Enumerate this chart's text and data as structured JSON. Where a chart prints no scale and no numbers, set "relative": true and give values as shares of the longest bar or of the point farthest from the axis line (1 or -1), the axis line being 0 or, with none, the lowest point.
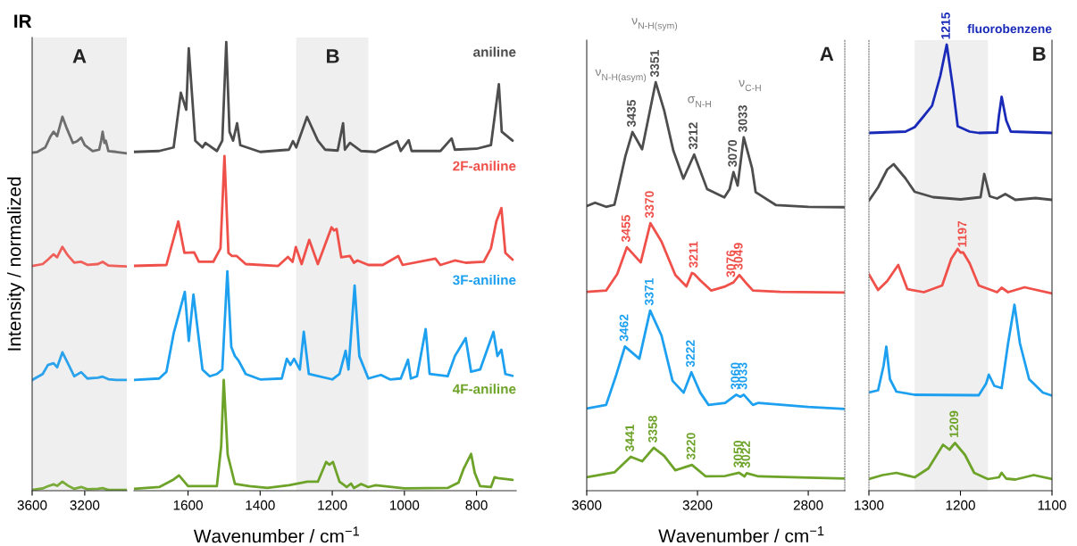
{
  "chart_data": [
    {
      "type": "line",
      "title": "IR",
      "ylabel": "Intensity / normalized",
      "relative": true,
      "xlim": [
        3600,
        2880
      ],
      "xticks": [
        3600,
        3200
      ],
      "tick_labels": "x",
      "bands": [
        {
          "axis": "x",
          "from": 3600,
          "to": 2880,
          "color": "#efefef"
        }
      ],
      "annotations": [
        "A"
      ],
      "series": [
        {
          "color": "#6e6e6e",
          "x": [
            3600,
            3560,
            3500,
            3460,
            3437,
            3410,
            3370,
            3340,
            3290,
            3260,
            3227,
            3200,
            3140,
            3090,
            3075,
            3064,
            3050,
            3040,
            3020,
            2960,
            2880
          ],
          "values": [
            0.904,
            0.906,
            0.918,
            0.948,
            0.96,
            0.948,
            1.0,
            0.972,
            0.93,
            0.934,
            0.944,
            0.924,
            0.908,
            0.912,
            0.936,
            0.96,
            0.93,
            0.936,
            0.908,
            0.906,
            0.902
          ]
        },
        {
          "color": "#f0605a",
          "x": [
            3600,
            3520,
            3480,
            3437,
            3410,
            3370,
            3330,
            3280,
            3227,
            3180,
            3100,
            3064,
            3020,
            2960,
            2880
          ],
          "values": [
            0.601,
            0.606,
            0.618,
            0.632,
            0.624,
            0.652,
            0.63,
            0.61,
            0.612,
            0.604,
            0.606,
            0.612,
            0.602,
            0.601,
            0.6
          ]
        },
        {
          "color": "#2ba2ec",
          "x": [
            3600,
            3520,
            3480,
            3437,
            3410,
            3370,
            3330,
            3280,
            3227,
            3180,
            3100,
            3064,
            3020,
            2960,
            2880
          ],
          "values": [
            0.296,
            0.312,
            0.336,
            0.341,
            0.33,
            0.37,
            0.342,
            0.306,
            0.317,
            0.3,
            0.302,
            0.305,
            0.298,
            0.296,
            0.296
          ]
        },
        {
          "color": "#78ab38",
          "x": [
            3600,
            3520,
            3480,
            3437,
            3410,
            3370,
            3330,
            3280,
            3227,
            3180,
            3100,
            3064,
            3020,
            2960,
            2880
          ],
          "values": [
            0.002,
            0.006,
            0.012,
            0.017,
            0.013,
            0.024,
            0.014,
            0.005,
            0.01,
            0.004,
            0.005,
            0.007,
            0.002,
            0.002,
            0.002
          ]
        }
      ]
    },
    {
      "type": "line",
      "xlabel": "Wavenumber / cm$^{−1}$",
      "relative": true,
      "xlim": [
        1750,
        690
      ],
      "xticks": [
        1600,
        1400,
        1200,
        1000,
        800
      ],
      "tick_labels": "x",
      "bands": [
        {
          "axis": "x",
          "from": 1300,
          "to": 1100,
          "color": "#efefef"
        }
      ],
      "annotations": [
        "B"
      ],
      "series": [
        {
          "name": "aniline",
          "color": "#4d4d4d",
          "x": [
            1750,
            1680,
            1640,
            1620,
            1605,
            1598,
            1580,
            1560,
            1552,
            1520,
            1505,
            1494,
            1485,
            1475,
            1464,
            1455,
            1400,
            1320,
            1309,
            1300,
            1270,
            1240,
            1220,
            1185,
            1170,
            1165,
            1151,
            1120,
            1080,
            1044,
            1020,
            1010,
            988,
            980,
            900,
            869,
            860,
            800,
            760,
            738,
            730,
            700
          ],
          "values": [
            0.755,
            0.757,
            0.765,
            0.887,
            0.849,
            0.986,
            0.78,
            0.765,
            0.775,
            0.757,
            0.78,
            1.0,
            0.8,
            0.78,
            0.819,
            0.77,
            0.755,
            0.76,
            0.779,
            0.765,
            0.833,
            0.78,
            0.76,
            0.758,
            0.819,
            0.76,
            0.775,
            0.757,
            0.755,
            0.769,
            0.779,
            0.757,
            0.781,
            0.757,
            0.757,
            0.785,
            0.76,
            0.762,
            0.77,
            0.906,
            0.8,
            0.78
          ]
        },
        {
          "name": "2F-aniline",
          "color": "#f0504a",
          "x": [
            1750,
            1660,
            1627,
            1610,
            1583,
            1570,
            1530,
            1510,
            1499,
            1488,
            1478,
            1465,
            1440,
            1350,
            1323,
            1310,
            1301,
            1285,
            1264,
            1240,
            1202,
            1195,
            1188,
            1175,
            1151,
            1140,
            1130,
            1100,
            1060,
            1017,
            1005,
            914,
            900,
            860,
            830,
            780,
            760,
            745,
            731,
            720,
            700
          ],
          "values": [
            0.501,
            0.503,
            0.6,
            0.53,
            0.531,
            0.51,
            0.51,
            0.54,
            0.746,
            0.53,
            0.523,
            0.523,
            0.505,
            0.501,
            0.521,
            0.51,
            0.543,
            0.505,
            0.559,
            0.505,
            0.587,
            0.58,
            0.583,
            0.52,
            0.523,
            0.508,
            0.513,
            0.503,
            0.503,
            0.523,
            0.503,
            0.517,
            0.503,
            0.513,
            0.508,
            0.51,
            0.54,
            0.6,
            0.63,
            0.53,
            0.515
          ]
        },
        {
          "name": "3F-aniline",
          "color": "#1ea0f0",
          "x": [
            1750,
            1680,
            1660,
            1640,
            1609,
            1598,
            1585,
            1560,
            1540,
            1520,
            1505,
            1491,
            1480,
            1470,
            1460,
            1440,
            1400,
            1340,
            1326,
            1316,
            1306,
            1290,
            1279,
            1265,
            1200,
            1180,
            1163,
            1155,
            1138,
            1125,
            1100,
            1065,
            1040,
            1010,
            990,
            982,
            965,
            941,
            930,
            880,
            860,
            830,
            815,
            790,
            753,
            742,
            731,
            720,
            700
          ],
          "values": [
            0.247,
            0.25,
            0.265,
            0.35,
            0.443,
            0.334,
            0.437,
            0.27,
            0.255,
            0.26,
            0.27,
            0.489,
            0.32,
            0.3,
            0.29,
            0.26,
            0.248,
            0.25,
            0.294,
            0.28,
            0.294,
            0.27,
            0.354,
            0.26,
            0.248,
            0.26,
            0.312,
            0.27,
            0.457,
            0.3,
            0.25,
            0.258,
            0.248,
            0.25,
            0.292,
            0.25,
            0.255,
            0.36,
            0.26,
            0.255,
            0.3,
            0.34,
            0.265,
            0.27,
            0.354,
            0.3,
            0.314,
            0.26,
            0.256
          ]
        },
        {
          "name": "4F-aniline",
          "color": "#6ea32a",
          "x": [
            1750,
            1680,
            1640,
            1625,
            1600,
            1520,
            1508,
            1501,
            1490,
            1470,
            1430,
            1380,
            1320,
            1269,
            1240,
            1217,
            1208,
            1198,
            1180,
            1160,
            1148,
            1140,
            1120,
            1100,
            1080,
            1000,
            880,
            850,
            835,
            815,
            805,
            790,
            760,
            750,
            741,
            700
          ],
          "values": [
            0.004,
            0.008,
            0.025,
            0.034,
            0.01,
            0.01,
            0.1,
            0.247,
            0.08,
            0.015,
            0.01,
            0.006,
            0.012,
            0.02,
            0.02,
            0.064,
            0.058,
            0.064,
            0.02,
            0.008,
            0.016,
            0.006,
            0.015,
            0.008,
            0.012,
            0.005,
            0.006,
            0.018,
            0.05,
            0.082,
            0.04,
            0.01,
            0.008,
            0.03,
            0.028,
            0.024
          ]
        }
      ]
    },
    {
      "type": "line",
      "xlabel": "Wavenumber / cm$^{−1}$",
      "relative": true,
      "xlim": [
        3600,
        2668
      ],
      "xticks": [
        3600,
        3200,
        2800
      ],
      "tick_labels": "x",
      "annotations": [
        "A",
        "ν$_{N-H(asym)}$",
        "ν$_{N-H(sym)}$",
        "σ$_{N-H}$",
        "ν$_{C-H}$",
        {
          "text": "3435",
          "x": 3435,
          "y": 0.878
        },
        {
          "text": "3351",
          "x": 3351,
          "y": 1.0
        },
        {
          "text": "3212",
          "x": 3212,
          "y": 0.823
        },
        {
          "text": "3070",
          "x": 3070,
          "y": 0.78
        },
        {
          "text": "3033",
          "x": 3033,
          "y": 0.865
        },
        {
          "text": "3455",
          "x": 3455,
          "y": 0.596
        },
        {
          "text": "3370",
          "x": 3370,
          "y": 0.655
        },
        {
          "text": "3211",
          "x": 3211,
          "y": 0.533
        },
        {
          "text": "3076",
          "x": 3076,
          "y": 0.51
        },
        {
          "text": "3049",
          "x": 3049,
          "y": 0.528
        },
        {
          "text": "3462",
          "x": 3462,
          "y": 0.353
        },
        {
          "text": "3371",
          "x": 3371,
          "y": 0.441
        },
        {
          "text": "3222",
          "x": 3222,
          "y": 0.29
        },
        {
          "text": "3060",
          "x": 3060,
          "y": 0.235
        },
        {
          "text": "3033",
          "x": 3033,
          "y": 0.235
        },
        {
          "text": "3441",
          "x": 3441,
          "y": 0.083
        },
        {
          "text": "3358",
          "x": 3358,
          "y": 0.105
        },
        {
          "text": "3220",
          "x": 3220,
          "y": 0.063
        },
        {
          "text": "3050",
          "x": 3050,
          "y": 0.044
        },
        {
          "text": "3022",
          "x": 3022,
          "y": 0.043
        }
      ],
      "series": [
        {
          "color": "#4d4d4d",
          "x": [
            3600,
            3570,
            3530,
            3500,
            3487,
            3460,
            3435,
            3400,
            3351,
            3320,
            3287,
            3251,
            3212,
            3165,
            3103,
            3084,
            3070,
            3055,
            3033,
            3003,
            2990,
            2916,
            2800,
            2668
          ],
          "values": [
            0.697,
            0.705,
            0.695,
            0.7,
            0.738,
            0.82,
            0.878,
            0.836,
            1.0,
            0.93,
            0.832,
            0.764,
            0.823,
            0.738,
            0.718,
            0.738,
            0.78,
            0.747,
            0.865,
            0.79,
            0.731,
            0.699,
            0.695,
            0.694
          ]
        },
        {
          "color": "#f0504a",
          "x": [
            3600,
            3530,
            3490,
            3455,
            3405,
            3370,
            3330,
            3280,
            3240,
            3220,
            3211,
            3190,
            3150,
            3100,
            3070,
            3049,
            3020,
            3000,
            2900,
            2668
          ],
          "values": [
            0.487,
            0.49,
            0.53,
            0.596,
            0.559,
            0.655,
            0.61,
            0.528,
            0.5,
            0.533,
            0.53,
            0.515,
            0.49,
            0.5,
            0.51,
            0.528,
            0.505,
            0.49,
            0.487,
            0.485
          ]
        },
        {
          "color": "#1ea0f0",
          "x": [
            3600,
            3530,
            3495,
            3462,
            3410,
            3371,
            3330,
            3290,
            3250,
            3222,
            3190,
            3160,
            3100,
            3060,
            3045,
            3033,
            3000,
            2980,
            2800,
            2668
          ],
          "values": [
            0.201,
            0.21,
            0.28,
            0.353,
            0.323,
            0.441,
            0.38,
            0.269,
            0.24,
            0.29,
            0.24,
            0.21,
            0.215,
            0.235,
            0.23,
            0.235,
            0.21,
            0.215,
            0.205,
            0.2
          ]
        },
        {
          "color": "#6ea32a",
          "x": [
            3600,
            3500,
            3441,
            3400,
            3358,
            3320,
            3280,
            3220,
            3170,
            3100,
            3050,
            3030,
            3022,
            2980,
            2800,
            2668
          ],
          "values": [
            0.033,
            0.045,
            0.083,
            0.072,
            0.105,
            0.085,
            0.05,
            0.063,
            0.035,
            0.036,
            0.044,
            0.035,
            0.043,
            0.035,
            0.032,
            0.03
          ]
        }
      ]
    },
    {
      "type": "line",
      "relative": true,
      "xlim": [
        1300,
        1100
      ],
      "xticks": [
        1300,
        1200,
        1100
      ],
      "tick_labels": "x",
      "bands": [
        {
          "axis": "x",
          "from": 1250,
          "to": 1170,
          "color": "#efefef"
        }
      ],
      "annotations": [
        "B",
        {
          "text": "1215",
          "x": 1215,
          "y": 1.0
        },
        {
          "text": "1197",
          "x": 1197,
          "y": 0.534
        },
        {
          "text": "1209",
          "x": 1206,
          "y": 0.107
        }
      ],
      "series": [
        {
          "name": "fluorobenzene",
          "color": "#1a2ab8",
          "x": [
            1300,
            1260,
            1250,
            1240,
            1231,
            1222,
            1215,
            1208,
            1203,
            1190,
            1180,
            1160,
            1158,
            1155,
            1150,
            1145,
            1100
          ],
          "values": [
            0.802,
            0.805,
            0.815,
            0.84,
            0.863,
            0.93,
            1.0,
            0.9,
            0.817,
            0.805,
            0.802,
            0.803,
            0.84,
            0.883,
            0.83,
            0.805,
            0.802
          ]
        },
        {
          "color": "#4d4d4d",
          "x": [
            1300,
            1290,
            1280,
            1273,
            1260,
            1250,
            1230,
            1200,
            1178,
            1174,
            1168,
            1160,
            1151,
            1140,
            1118,
            1100
          ],
          "values": [
            0.65,
            0.68,
            0.72,
            0.732,
            0.7,
            0.67,
            0.658,
            0.653,
            0.658,
            0.71,
            0.66,
            0.655,
            0.665,
            0.652,
            0.656,
            0.652
          ]
        },
        {
          "color": "#f0504a",
          "x": [
            1300,
            1290,
            1280,
            1268,
            1258,
            1240,
            1220,
            1210,
            1203,
            1200,
            1197,
            1190,
            1180,
            1160,
            1155,
            1148,
            1130,
            1100
          ],
          "values": [
            0.485,
            0.45,
            0.47,
            0.506,
            0.452,
            0.445,
            0.46,
            0.52,
            0.542,
            0.534,
            0.534,
            0.51,
            0.46,
            0.445,
            0.455,
            0.445,
            0.456,
            0.442
          ]
        },
        {
          "color": "#1ea0f0",
          "x": [
            1300,
            1290,
            1284,
            1281,
            1277,
            1270,
            1250,
            1180,
            1172,
            1169,
            1163,
            1155,
            1148,
            1141,
            1135,
            1125,
            1110,
            1100
          ],
          "values": [
            0.22,
            0.225,
            0.28,
            0.323,
            0.25,
            0.222,
            0.215,
            0.214,
            0.24,
            0.26,
            0.235,
            0.23,
            0.33,
            0.417,
            0.33,
            0.25,
            0.22,
            0.213
          ]
        },
        {
          "color": "#6ea32a",
          "x": [
            1300,
            1285,
            1270,
            1250,
            1235,
            1219,
            1212,
            1206,
            1195,
            1185,
            1170,
            1158,
            1155,
            1150,
            1140,
            1120,
            1100
          ],
          "values": [
            0.026,
            0.035,
            0.04,
            0.03,
            0.05,
            0.103,
            0.092,
            0.107,
            0.08,
            0.04,
            0.026,
            0.03,
            0.04,
            0.027,
            0.025,
            0.035,
            0.026
          ]
        }
      ]
    }
  ]
}
